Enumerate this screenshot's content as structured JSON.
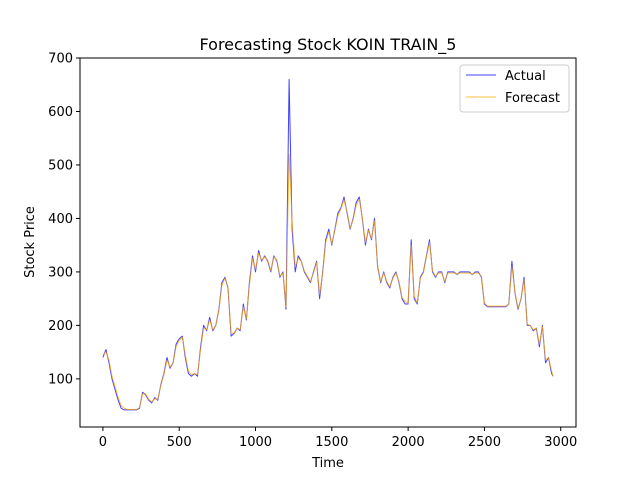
{
  "chart_data": {
    "type": "line",
    "title": "Forecasting Stock KOIN TRAIN_5",
    "xlabel": "Time",
    "ylabel": "Stock Price",
    "xlim": [
      -150,
      3100
    ],
    "ylim": [
      10,
      700
    ],
    "xticks": [
      0,
      500,
      1000,
      1500,
      2000,
      2500,
      3000
    ],
    "yticks": [
      100,
      200,
      300,
      400,
      500,
      600,
      700
    ],
    "grid": false,
    "legend_position": "top-right",
    "series": [
      {
        "name": "Actual",
        "color": "#0000ff",
        "points": [
          [
            0,
            140
          ],
          [
            20,
            155
          ],
          [
            40,
            130
          ],
          [
            60,
            100
          ],
          [
            80,
            80
          ],
          [
            100,
            60
          ],
          [
            120,
            45
          ],
          [
            140,
            42
          ],
          [
            160,
            42
          ],
          [
            180,
            42
          ],
          [
            200,
            42
          ],
          [
            220,
            42
          ],
          [
            240,
            45
          ],
          [
            260,
            75
          ],
          [
            280,
            70
          ],
          [
            300,
            60
          ],
          [
            320,
            55
          ],
          [
            340,
            65
          ],
          [
            360,
            60
          ],
          [
            380,
            90
          ],
          [
            400,
            110
          ],
          [
            420,
            140
          ],
          [
            440,
            120
          ],
          [
            460,
            130
          ],
          [
            480,
            165
          ],
          [
            500,
            175
          ],
          [
            520,
            180
          ],
          [
            540,
            140
          ],
          [
            560,
            110
          ],
          [
            580,
            105
          ],
          [
            600,
            110
          ],
          [
            620,
            105
          ],
          [
            640,
            160
          ],
          [
            660,
            200
          ],
          [
            680,
            190
          ],
          [
            700,
            215
          ],
          [
            720,
            190
          ],
          [
            740,
            200
          ],
          [
            760,
            230
          ],
          [
            780,
            280
          ],
          [
            800,
            290
          ],
          [
            820,
            270
          ],
          [
            840,
            180
          ],
          [
            860,
            185
          ],
          [
            880,
            195
          ],
          [
            900,
            190
          ],
          [
            920,
            240
          ],
          [
            940,
            210
          ],
          [
            960,
            280
          ],
          [
            980,
            330
          ],
          [
            1000,
            300
          ],
          [
            1020,
            340
          ],
          [
            1040,
            320
          ],
          [
            1060,
            330
          ],
          [
            1080,
            320
          ],
          [
            1100,
            300
          ],
          [
            1120,
            330
          ],
          [
            1140,
            320
          ],
          [
            1160,
            290
          ],
          [
            1180,
            300
          ],
          [
            1200,
            230
          ],
          [
            1220,
            660
          ],
          [
            1240,
            380
          ],
          [
            1260,
            300
          ],
          [
            1280,
            330
          ],
          [
            1300,
            320
          ],
          [
            1320,
            300
          ],
          [
            1340,
            290
          ],
          [
            1360,
            280
          ],
          [
            1380,
            300
          ],
          [
            1400,
            320
          ],
          [
            1420,
            250
          ],
          [
            1440,
            300
          ],
          [
            1460,
            360
          ],
          [
            1480,
            380
          ],
          [
            1500,
            350
          ],
          [
            1520,
            380
          ],
          [
            1540,
            410
          ],
          [
            1560,
            420
          ],
          [
            1580,
            440
          ],
          [
            1600,
            410
          ],
          [
            1620,
            380
          ],
          [
            1640,
            400
          ],
          [
            1660,
            430
          ],
          [
            1680,
            440
          ],
          [
            1700,
            400
          ],
          [
            1720,
            350
          ],
          [
            1740,
            380
          ],
          [
            1760,
            360
          ],
          [
            1780,
            400
          ],
          [
            1800,
            310
          ],
          [
            1820,
            280
          ],
          [
            1840,
            300
          ],
          [
            1860,
            280
          ],
          [
            1880,
            270
          ],
          [
            1900,
            290
          ],
          [
            1920,
            300
          ],
          [
            1940,
            280
          ],
          [
            1960,
            250
          ],
          [
            1980,
            240
          ],
          [
            2000,
            240
          ],
          [
            2020,
            360
          ],
          [
            2040,
            250
          ],
          [
            2060,
            240
          ],
          [
            2080,
            290
          ],
          [
            2100,
            300
          ],
          [
            2120,
            330
          ],
          [
            2140,
            360
          ],
          [
            2160,
            300
          ],
          [
            2180,
            290
          ],
          [
            2200,
            300
          ],
          [
            2220,
            300
          ],
          [
            2240,
            280
          ],
          [
            2260,
            300
          ],
          [
            2280,
            300
          ],
          [
            2300,
            300
          ],
          [
            2320,
            295
          ],
          [
            2340,
            300
          ],
          [
            2360,
            300
          ],
          [
            2380,
            300
          ],
          [
            2400,
            300
          ],
          [
            2420,
            295
          ],
          [
            2440,
            300
          ],
          [
            2460,
            300
          ],
          [
            2480,
            290
          ],
          [
            2500,
            240
          ],
          [
            2520,
            235
          ],
          [
            2540,
            235
          ],
          [
            2560,
            235
          ],
          [
            2580,
            235
          ],
          [
            2600,
            235
          ],
          [
            2620,
            235
          ],
          [
            2640,
            235
          ],
          [
            2660,
            240
          ],
          [
            2680,
            320
          ],
          [
            2700,
            260
          ],
          [
            2720,
            230
          ],
          [
            2740,
            250
          ],
          [
            2760,
            290
          ],
          [
            2780,
            200
          ],
          [
            2800,
            200
          ],
          [
            2820,
            190
          ],
          [
            2840,
            195
          ],
          [
            2860,
            160
          ],
          [
            2880,
            200
          ],
          [
            2900,
            130
          ],
          [
            2920,
            140
          ],
          [
            2940,
            110
          ],
          [
            2950,
            105
          ]
        ]
      },
      {
        "name": "Forecast",
        "color": "#ffa500",
        "points": [
          [
            0,
            145
          ],
          [
            20,
            150
          ],
          [
            40,
            135
          ],
          [
            60,
            105
          ],
          [
            80,
            85
          ],
          [
            100,
            65
          ],
          [
            120,
            50
          ],
          [
            140,
            45
          ],
          [
            160,
            43
          ],
          [
            180,
            43
          ],
          [
            200,
            43
          ],
          [
            220,
            43
          ],
          [
            240,
            46
          ],
          [
            260,
            72
          ],
          [
            280,
            72
          ],
          [
            300,
            62
          ],
          [
            320,
            57
          ],
          [
            340,
            63
          ],
          [
            360,
            62
          ],
          [
            380,
            88
          ],
          [
            400,
            108
          ],
          [
            420,
            135
          ],
          [
            440,
            122
          ],
          [
            460,
            130
          ],
          [
            480,
            160
          ],
          [
            500,
            172
          ],
          [
            520,
            178
          ],
          [
            540,
            145
          ],
          [
            560,
            115
          ],
          [
            580,
            108
          ],
          [
            600,
            110
          ],
          [
            620,
            108
          ],
          [
            640,
            155
          ],
          [
            660,
            195
          ],
          [
            680,
            192
          ],
          [
            700,
            210
          ],
          [
            720,
            192
          ],
          [
            740,
            200
          ],
          [
            760,
            228
          ],
          [
            780,
            275
          ],
          [
            800,
            288
          ],
          [
            820,
            272
          ],
          [
            840,
            185
          ],
          [
            860,
            186
          ],
          [
            880,
            195
          ],
          [
            900,
            192
          ],
          [
            920,
            235
          ],
          [
            940,
            212
          ],
          [
            960,
            275
          ],
          [
            980,
            325
          ],
          [
            1000,
            305
          ],
          [
            1020,
            335
          ],
          [
            1040,
            322
          ],
          [
            1060,
            328
          ],
          [
            1080,
            322
          ],
          [
            1100,
            302
          ],
          [
            1120,
            328
          ],
          [
            1140,
            322
          ],
          [
            1160,
            292
          ],
          [
            1180,
            298
          ],
          [
            1200,
            235
          ],
          [
            1220,
            520
          ],
          [
            1240,
            395
          ],
          [
            1260,
            310
          ],
          [
            1280,
            325
          ],
          [
            1300,
            320
          ],
          [
            1320,
            302
          ],
          [
            1340,
            292
          ],
          [
            1360,
            282
          ],
          [
            1380,
            298
          ],
          [
            1400,
            318
          ],
          [
            1420,
            258
          ],
          [
            1440,
            298
          ],
          [
            1460,
            355
          ],
          [
            1480,
            375
          ],
          [
            1500,
            352
          ],
          [
            1520,
            378
          ],
          [
            1540,
            405
          ],
          [
            1560,
            418
          ],
          [
            1580,
            435
          ],
          [
            1600,
            412
          ],
          [
            1620,
            382
          ],
          [
            1640,
            398
          ],
          [
            1660,
            425
          ],
          [
            1680,
            436
          ],
          [
            1700,
            402
          ],
          [
            1720,
            355
          ],
          [
            1740,
            378
          ],
          [
            1760,
            362
          ],
          [
            1780,
            395
          ],
          [
            1800,
            312
          ],
          [
            1820,
            282
          ],
          [
            1840,
            298
          ],
          [
            1860,
            282
          ],
          [
            1880,
            272
          ],
          [
            1900,
            288
          ],
          [
            1920,
            298
          ],
          [
            1940,
            282
          ],
          [
            1960,
            252
          ],
          [
            1980,
            245
          ],
          [
            2000,
            242
          ],
          [
            2020,
            350
          ],
          [
            2040,
            255
          ],
          [
            2060,
            242
          ],
          [
            2080,
            288
          ],
          [
            2100,
            298
          ],
          [
            2120,
            328
          ],
          [
            2140,
            355
          ],
          [
            2160,
            302
          ],
          [
            2180,
            292
          ],
          [
            2200,
            298
          ],
          [
            2220,
            298
          ],
          [
            2240,
            282
          ],
          [
            2260,
            298
          ],
          [
            2280,
            298
          ],
          [
            2300,
            298
          ],
          [
            2320,
            296
          ],
          [
            2340,
            298
          ],
          [
            2360,
            298
          ],
          [
            2380,
            298
          ],
          [
            2400,
            298
          ],
          [
            2420,
            296
          ],
          [
            2440,
            298
          ],
          [
            2460,
            298
          ],
          [
            2480,
            292
          ],
          [
            2500,
            242
          ],
          [
            2520,
            236
          ],
          [
            2540,
            236
          ],
          [
            2560,
            236
          ],
          [
            2580,
            236
          ],
          [
            2600,
            236
          ],
          [
            2620,
            236
          ],
          [
            2640,
            236
          ],
          [
            2660,
            240
          ],
          [
            2680,
            310
          ],
          [
            2700,
            262
          ],
          [
            2720,
            232
          ],
          [
            2740,
            250
          ],
          [
            2760,
            285
          ],
          [
            2780,
            202
          ],
          [
            2800,
            200
          ],
          [
            2820,
            192
          ],
          [
            2840,
            195
          ],
          [
            2860,
            165
          ],
          [
            2880,
            198
          ],
          [
            2900,
            135
          ],
          [
            2920,
            140
          ],
          [
            2940,
            115
          ],
          [
            2950,
            105
          ]
        ]
      }
    ]
  }
}
